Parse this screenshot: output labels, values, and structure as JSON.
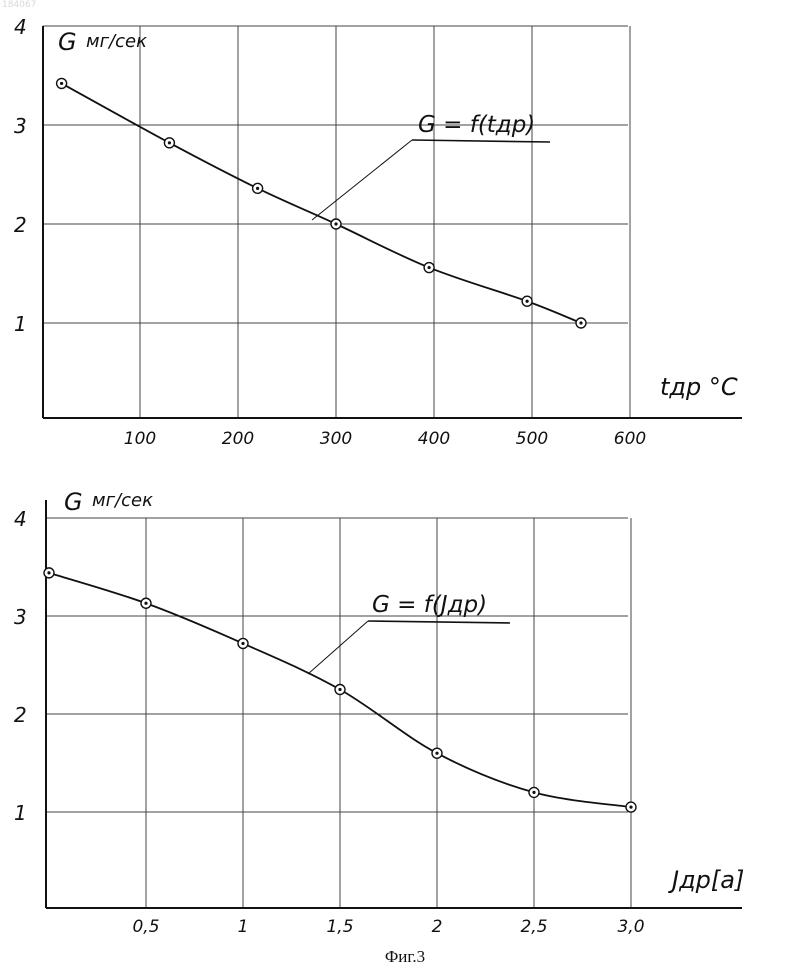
{
  "corner_id": "184067",
  "caption": "Фиг.3",
  "chart_data": [
    {
      "type": "line",
      "ylabel_main": "G",
      "ylabel_unit": "мг/сек",
      "xlabel": "tдр °С",
      "formula": "G = f(tдр)",
      "ylim": [
        0,
        4
      ],
      "xlim": [
        -30,
        700
      ],
      "y_ticks": [
        "1",
        "2",
        "3",
        "4"
      ],
      "y_tick_values": [
        1,
        2,
        3,
        4
      ],
      "x_ticks": [
        "100",
        "200",
        "300",
        "400",
        "500",
        "600"
      ],
      "x_tick_values": [
        100,
        200,
        300,
        400,
        500,
        600
      ],
      "grid": true,
      "series": [
        {
          "x": [
            20,
            130,
            220,
            300,
            395,
            495,
            550
          ],
          "y": [
            3.42,
            2.82,
            2.36,
            2.0,
            1.56,
            1.22,
            1.0
          ]
        }
      ]
    },
    {
      "type": "line",
      "ylabel_main": "G",
      "ylabel_unit": "мг/сек",
      "xlabel": "Jдр[а]",
      "formula": "G = f(Jдр)",
      "ylim": [
        0,
        4
      ],
      "xlim": [
        0,
        3.5
      ],
      "y_ticks": [
        "1",
        "2",
        "3",
        "4"
      ],
      "y_tick_values": [
        1,
        2,
        3,
        4
      ],
      "x_ticks": [
        "0,5",
        "1",
        "1,5",
        "2",
        "2,5",
        "3,0"
      ],
      "x_tick_values": [
        0.5,
        1.0,
        1.5,
        2.0,
        2.5,
        3.0
      ],
      "grid": true,
      "series": [
        {
          "x": [
            0.0,
            0.5,
            1.0,
            1.5,
            2.0,
            2.5,
            3.0
          ],
          "y": [
            3.44,
            3.13,
            2.72,
            2.25,
            1.6,
            1.2,
            1.05
          ]
        }
      ]
    }
  ]
}
